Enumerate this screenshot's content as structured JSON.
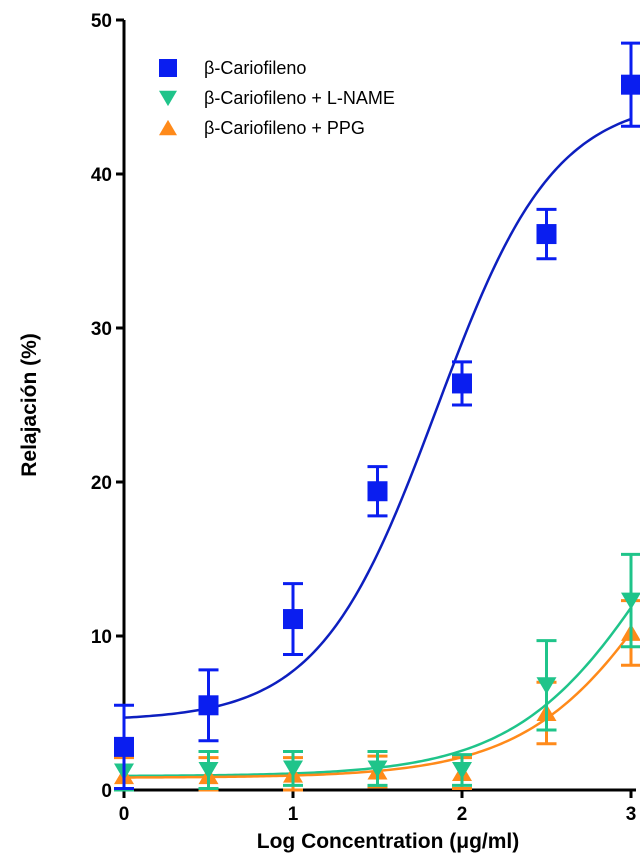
{
  "chart_data": {
    "type": "scatter",
    "title": "",
    "xlabel": "Log Concentration (μg/ml)",
    "ylabel": "Relajación (%)",
    "xlim": [
      0,
      3
    ],
    "ylim": [
      0,
      50
    ],
    "x_ticks": [
      "0",
      "1",
      "2",
      "3"
    ],
    "y_ticks": [
      "0",
      "10",
      "20",
      "30",
      "40",
      "50"
    ],
    "x_tick_values": [
      0,
      1,
      2,
      3
    ],
    "y_tick_values": [
      0,
      10,
      20,
      30,
      40,
      50
    ],
    "legend_position": "top-left",
    "grid": false,
    "series": [
      {
        "name": "β-Cariofileno",
        "marker": "square",
        "color": "#0a1ef0",
        "curve_color": "#0d1fbf",
        "x": [
          0,
          0.5,
          1,
          1.5,
          2,
          2.5,
          3
        ],
        "y": [
          2.8,
          5.5,
          11.1,
          19.4,
          26.4,
          36.1,
          45.8
        ],
        "error": [
          2.7,
          2.3,
          2.3,
          1.6,
          1.4,
          1.6,
          2.7
        ],
        "fit": {
          "bottom": 4.5,
          "top": 45.0,
          "logEC50": 1.85,
          "hill": 1.25
        }
      },
      {
        "name": "β-Cariofileno + L-NAME",
        "marker": "triangle-down",
        "color": "#1fc48a",
        "curve_color": "#1fc48a",
        "x": [
          0,
          0.5,
          1,
          1.5,
          2,
          2.5,
          3
        ],
        "y": [
          1.2,
          1.3,
          1.4,
          1.4,
          1.3,
          6.8,
          12.3
        ],
        "error": [
          1.2,
          1.2,
          1.1,
          1.1,
          1.0,
          2.9,
          3.0
        ],
        "fit": {
          "bottom": 0.9,
          "top": 30.0,
          "logEC50": 3.22,
          "hill": 1.0
        }
      },
      {
        "name": "β-Cariofileno + PPG",
        "marker": "triangle-up",
        "color": "#ff8a1a",
        "curve_color": "#ff8a1a",
        "x": [
          0,
          0.5,
          1,
          1.5,
          2,
          2.5,
          3
        ],
        "y": [
          0.9,
          0.9,
          1.0,
          1.2,
          1.1,
          5.0,
          10.2
        ],
        "error": [
          1.2,
          1.2,
          1.1,
          1.0,
          1.0,
          2.0,
          2.1
        ],
        "fit": {
          "bottom": 0.8,
          "top": 30.0,
          "logEC50": 3.32,
          "hill": 1.0
        }
      }
    ]
  }
}
